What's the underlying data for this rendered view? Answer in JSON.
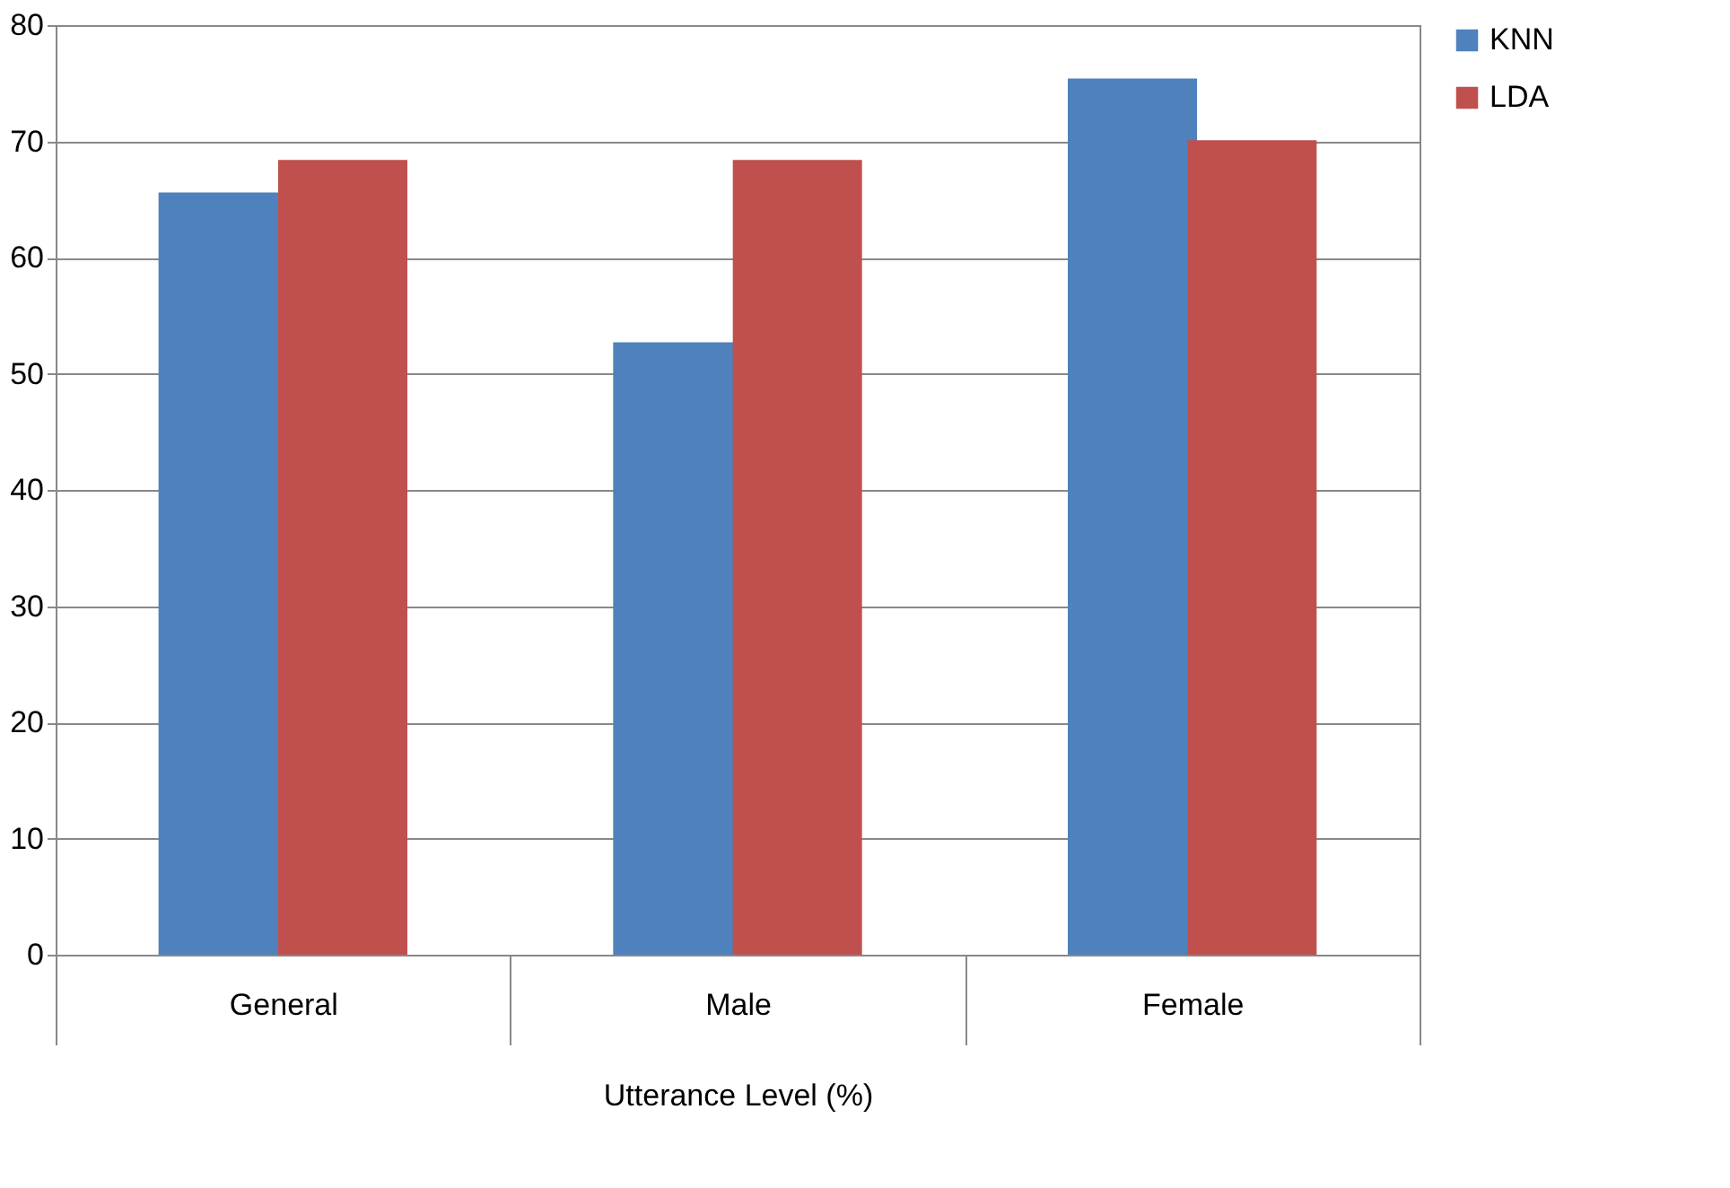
{
  "chart_data": {
    "type": "bar",
    "xlabel": "Utterance Level (%)",
    "categories": [
      "General",
      "Male",
      "Female"
    ],
    "series": [
      {
        "name": "KNN",
        "color": "#4f81bd",
        "values": [
          65.6,
          52.7,
          75.4
        ]
      },
      {
        "name": "LDA",
        "color": "#c0504d",
        "values": [
          68.4,
          68.4,
          70.1
        ]
      }
    ],
    "ylim": [
      0,
      80
    ],
    "yticks": [
      0,
      10,
      20,
      30,
      40,
      50,
      60,
      70,
      80
    ],
    "grid": "y",
    "legend": "right"
  }
}
